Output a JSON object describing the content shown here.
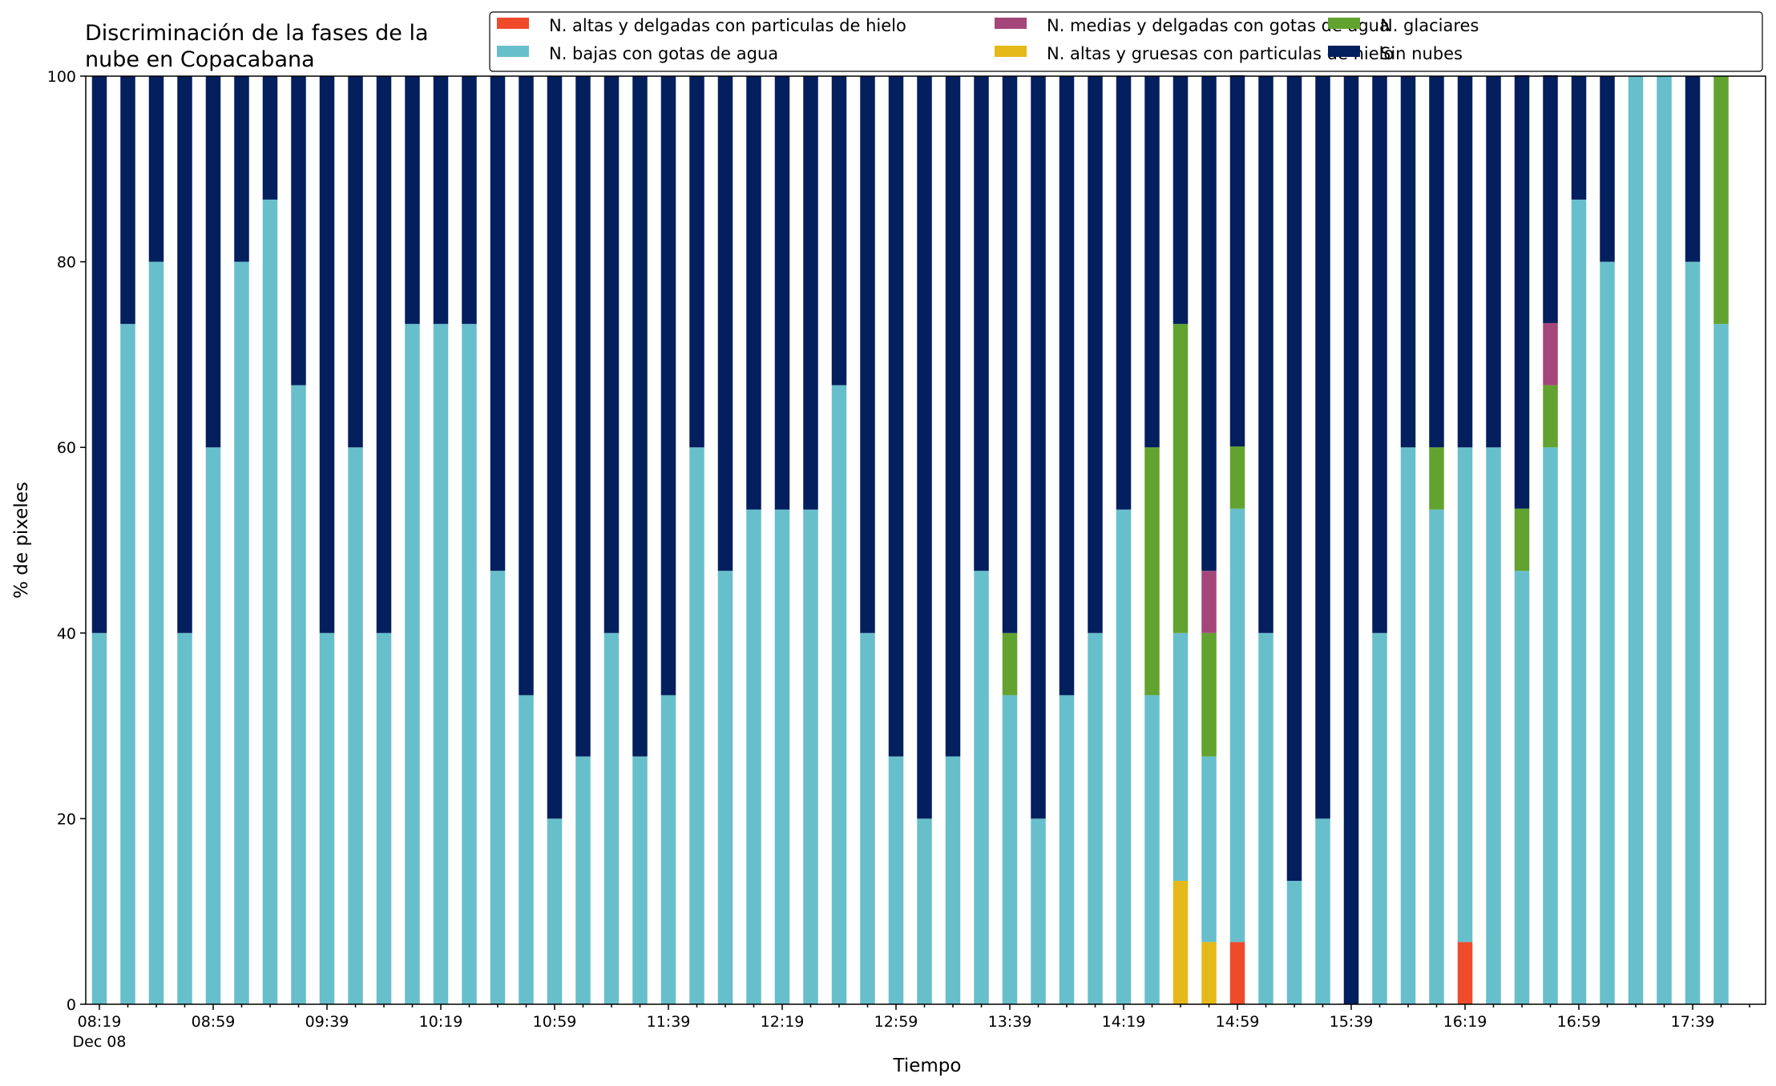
{
  "chart_data": {
    "type": "bar",
    "stacked": true,
    "title_lines": [
      "Discriminación de la fases de la",
      "nube en Copacabana"
    ],
    "xlabel": "Tiempo",
    "ylabel": "% de pixeles",
    "ylim": [
      0,
      100
    ],
    "yticks": [
      0,
      20,
      40,
      60,
      80,
      100
    ],
    "grid": false,
    "legend_position": "top-right",
    "x_start_label": "08:19",
    "x_start_sublabel": "Dec 08",
    "xtick_labels": [
      {
        "index": 0,
        "label": "08:19"
      },
      {
        "index": 4,
        "label": "08:59"
      },
      {
        "index": 8,
        "label": "09:39"
      },
      {
        "index": 12,
        "label": "10:19"
      },
      {
        "index": 16,
        "label": "10:59"
      },
      {
        "index": 20,
        "label": "11:39"
      },
      {
        "index": 24,
        "label": "12:19"
      },
      {
        "index": 28,
        "label": "12:59"
      },
      {
        "index": 32,
        "label": "13:39"
      },
      {
        "index": 36,
        "label": "14:19"
      },
      {
        "index": 40,
        "label": "14:59"
      },
      {
        "index": 44,
        "label": "15:39"
      },
      {
        "index": 48,
        "label": "16:19"
      },
      {
        "index": 52,
        "label": "16:59"
      },
      {
        "index": 56,
        "label": "17:39"
      }
    ],
    "series": [
      {
        "name": "N. altas y delgadas con particulas de hielo",
        "color": "#ef4b2a",
        "values": [
          0,
          0,
          0,
          0,
          0,
          0,
          0,
          0,
          0,
          0,
          0,
          0,
          0,
          0,
          0,
          0,
          0,
          0,
          0,
          0,
          0,
          0,
          0,
          0,
          0,
          0,
          0,
          0,
          0,
          0,
          0,
          0,
          0,
          0,
          0,
          0,
          0,
          0,
          0,
          0,
          6.7,
          0,
          0,
          0,
          0,
          0,
          0,
          0,
          6.7,
          0,
          0,
          0,
          0,
          0,
          0,
          0,
          0,
          0
        ]
      },
      {
        "name": "N. altas y gruesas con particulas de hielo",
        "color": "#e6b91a",
        "values": [
          0,
          0,
          0,
          0,
          0,
          0,
          0,
          0,
          0,
          0,
          0,
          0,
          0,
          0,
          0,
          0,
          0,
          0,
          0,
          0,
          0,
          0,
          0,
          0,
          0,
          0,
          0,
          0,
          0,
          0,
          0,
          0,
          0,
          0,
          0,
          0,
          0,
          0,
          13.3,
          6.7,
          0,
          0,
          0,
          0,
          0,
          0,
          0,
          0,
          0,
          0,
          0,
          0,
          0,
          0,
          0,
          0,
          0,
          0
        ]
      },
      {
        "name": "N. bajas con gotas de agua",
        "color": "#67bfcb",
        "values": [
          40,
          73.3,
          80,
          40,
          60,
          80,
          86.7,
          66.7,
          40,
          60,
          40,
          73.3,
          73.3,
          73.3,
          46.7,
          33.3,
          20,
          26.7,
          40,
          26.7,
          33.3,
          60,
          46.7,
          53.3,
          53.3,
          53.3,
          66.7,
          40,
          26.7,
          20,
          26.7,
          46.7,
          33.3,
          20,
          33.3,
          40,
          53.3,
          33.3,
          26.7,
          20,
          46.7,
          40,
          13.3,
          20,
          0,
          40,
          60,
          53.3,
          53.3,
          60,
          46.7,
          60,
          86.7,
          80,
          100,
          100,
          80,
          73.3
        ]
      },
      {
        "name": "N. glaciares",
        "color": "#62a22f",
        "values": [
          0,
          0,
          0,
          0,
          0,
          0,
          0,
          0,
          0,
          0,
          0,
          0,
          0,
          0,
          0,
          0,
          0,
          0,
          0,
          0,
          0,
          0,
          0,
          0,
          0,
          0,
          0,
          0,
          0,
          0,
          0,
          0,
          6.7,
          0,
          0,
          0,
          0,
          26.7,
          33.3,
          13.3,
          6.7,
          0,
          0,
          0,
          0,
          0,
          0,
          6.7,
          0,
          0,
          6.7,
          6.7,
          0,
          0,
          0,
          0,
          0,
          26.7
        ]
      },
      {
        "name": "N. medias y delgadas con gotas de agua",
        "color": "#a4467a",
        "values": [
          0,
          0,
          0,
          0,
          0,
          0,
          0,
          0,
          0,
          0,
          0,
          0,
          0,
          0,
          0,
          0,
          0,
          0,
          0,
          0,
          0,
          0,
          0,
          0,
          0,
          0,
          0,
          0,
          0,
          0,
          0,
          0,
          0,
          0,
          0,
          0,
          0,
          0,
          0,
          6.7,
          0,
          0,
          0,
          0,
          0,
          0,
          0,
          0,
          0,
          0,
          0,
          6.7,
          0,
          0,
          0,
          0,
          0,
          0
        ]
      },
      {
        "name": "Sin nubes",
        "color": "#041f5e",
        "values": [
          60,
          26.7,
          20,
          60,
          40,
          20,
          13.3,
          33.3,
          60,
          40,
          60,
          26.7,
          26.7,
          26.7,
          53.3,
          66.7,
          80,
          73.3,
          60,
          73.3,
          66.7,
          40,
          53.3,
          46.7,
          46.7,
          46.7,
          33.3,
          60,
          73.3,
          80,
          73.3,
          53.3,
          60,
          80,
          66.7,
          60,
          46.7,
          40,
          26.7,
          53.3,
          40,
          60,
          86.7,
          80,
          100,
          60,
          40,
          40,
          40,
          40,
          46.7,
          26.7,
          13.3,
          20,
          0,
          0,
          20,
          0
        ]
      }
    ],
    "legend_order": [
      0,
      2,
      4,
      1,
      3,
      5
    ]
  }
}
